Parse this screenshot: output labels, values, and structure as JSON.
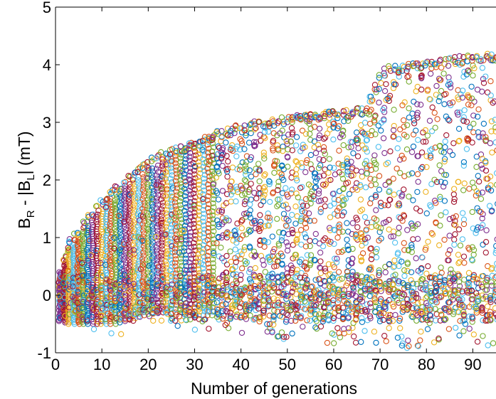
{
  "chart_data": {
    "type": "scatter",
    "title": "",
    "xlabel": "Number of generations",
    "ylabel": {
      "base": "B",
      "sub1": "R",
      "middle": " - |B",
      "sub2": "L",
      "tail": "| (mT)"
    },
    "xlim": [
      0,
      95
    ],
    "ylim": [
      -1,
      5
    ],
    "xticks": [
      "0",
      "10",
      "20",
      "30",
      "40",
      "50",
      "60",
      "70",
      "80",
      "90"
    ],
    "yticks": [
      "-1",
      "0",
      "1",
      "2",
      "3",
      "4",
      "5"
    ],
    "grid": false,
    "legend": "none",
    "marker": "open-circle",
    "colors": [
      "#0072BD",
      "#D95319",
      "#EDB120",
      "#7E2F8E",
      "#77AC30",
      "#4DBEEE",
      "#A2142F"
    ],
    "envelope": {
      "x": [
        1,
        3,
        5,
        7,
        9,
        11,
        13,
        15,
        17,
        19,
        21,
        23,
        25,
        27,
        29,
        31,
        33,
        35,
        37,
        39,
        41,
        43,
        45,
        47,
        49,
        51,
        53,
        55,
        57,
        59,
        61,
        63,
        65,
        67,
        69,
        71,
        73,
        75,
        77,
        79,
        81,
        83,
        85,
        87,
        89,
        91,
        93,
        95
      ],
      "upper": [
        0.4,
        1.0,
        1.2,
        1.4,
        1.6,
        1.8,
        1.9,
        2.0,
        2.2,
        2.3,
        2.4,
        2.5,
        2.55,
        2.6,
        2.65,
        2.7,
        2.8,
        2.85,
        2.9,
        2.95,
        3.0,
        3.02,
        3.05,
        3.08,
        3.1,
        3.12,
        3.15,
        3.15,
        3.17,
        3.2,
        3.22,
        3.22,
        3.25,
        3.3,
        3.7,
        3.95,
        4.0,
        4.02,
        4.05,
        4.05,
        4.08,
        4.1,
        4.12,
        4.15,
        4.17,
        4.2,
        4.2,
        4.2
      ],
      "lower": [
        -0.5,
        -0.8,
        -0.85,
        -0.8,
        -0.8,
        -0.8,
        -0.85,
        -0.8,
        -0.6,
        -0.6,
        -0.5,
        -0.5,
        -0.5,
        -0.6,
        -0.6,
        -0.6,
        -0.6,
        -0.6,
        -0.65,
        -0.7,
        -0.7,
        -0.7,
        -0.75,
        -0.75,
        -0.8,
        -0.8,
        -0.8,
        -0.8,
        -0.8,
        -0.85,
        -0.85,
        -0.85,
        -0.85,
        -0.9,
        -0.9,
        -0.9,
        -0.9,
        -0.9,
        -0.95,
        -0.95,
        -0.95,
        -0.95,
        -0.95,
        -0.95,
        -0.95,
        -0.95,
        -0.95,
        -0.95
      ],
      "dense_upper": [
        0.4,
        0.8,
        1.0,
        1.2,
        1.4,
        1.6,
        1.75,
        1.85,
        2.0,
        2.1,
        2.2,
        2.3,
        2.45,
        2.5,
        2.6,
        2.65,
        2.75,
        2.8,
        2.85,
        2.9,
        2.95,
        3.0,
        3.02,
        3.05,
        3.08,
        3.1,
        3.12,
        3.12,
        3.15,
        3.17,
        3.2,
        3.2,
        3.2,
        3.2,
        3.6,
        3.9,
        3.95,
        4.0,
        4.02,
        4.05,
        4.05,
        4.08,
        4.1,
        4.12,
        4.15,
        4.17,
        4.18,
        4.18
      ],
      "dense_lower": [
        -0.45,
        -0.5,
        -0.5,
        -0.5,
        -0.5,
        -0.5,
        -0.5,
        -0.45,
        -0.4,
        -0.35,
        -0.3,
        -0.3,
        -0.3,
        -0.3,
        -0.35,
        -0.35,
        -0.35,
        -0.35,
        -0.35,
        -0.4,
        -0.4,
        -0.4,
        -0.4,
        -0.45,
        -0.45,
        -0.45,
        -0.45,
        -0.45,
        -0.5,
        -0.5,
        -0.5,
        -0.5,
        -0.5,
        -0.5,
        -0.5,
        -0.5,
        -0.5,
        -0.5,
        -0.5,
        -0.5,
        -0.5,
        -0.5,
        -0.5,
        -0.5,
        -0.5,
        -0.5,
        -0.5,
        -0.5
      ]
    }
  }
}
